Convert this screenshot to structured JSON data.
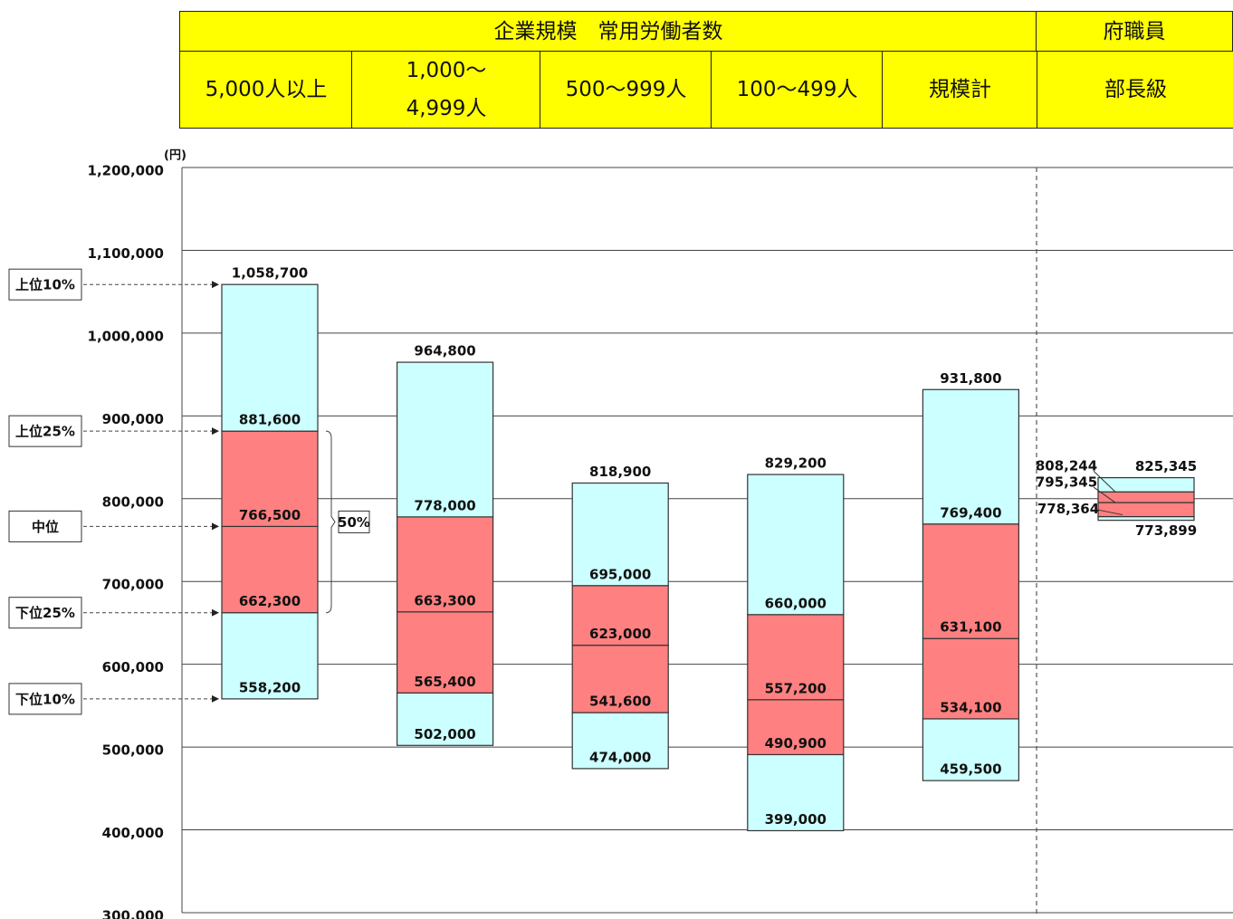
{
  "header": {
    "group_title": "企業規模　常用労働者数",
    "side_title": "府職員"
  },
  "chart_data": {
    "type": "percentile-box",
    "categories": [
      "5,000人以上",
      "1,000～\n4,999人",
      "500～999人",
      "100～499人",
      "規模計",
      "部長級"
    ],
    "y_unit": "(円)",
    "ylim": [
      300000,
      1200000
    ],
    "yticks": [
      {
        "value": 300000,
        "label": "300,000"
      },
      {
        "value": 400000,
        "label": "400,000"
      },
      {
        "value": 500000,
        "label": "500,000"
      },
      {
        "value": 600000,
        "label": "600,000"
      },
      {
        "value": 700000,
        "label": "700,000"
      },
      {
        "value": 800000,
        "label": "800,000"
      },
      {
        "value": 900000,
        "label": "900,000"
      },
      {
        "value": 1000000,
        "label": "1,000,000"
      },
      {
        "value": 1100000,
        "label": "1,100,000"
      },
      {
        "value": 1200000,
        "label": "1,200,000"
      }
    ],
    "grid": true,
    "outer_color": "#ccffff",
    "inner_color": "#ff8080",
    "bracket_label": "50%",
    "series": [
      {
        "name": "下位10%",
        "values": [
          558200,
          502000,
          474000,
          399000,
          459500,
          773899
        ],
        "value_labels": [
          "558,200",
          "502,000",
          "474,000",
          "399,000",
          "459,500",
          "773,899"
        ]
      },
      {
        "name": "下位25%",
        "values": [
          662300,
          565400,
          541600,
          490900,
          534100,
          778364
        ],
        "value_labels": [
          "662,300",
          "565,400",
          "541,600",
          "490,900",
          "534,100",
          "778,364"
        ]
      },
      {
        "name": "中位",
        "values": [
          766500,
          663300,
          623000,
          557200,
          631100,
          795345
        ],
        "value_labels": [
          "766,500",
          "663,300",
          "623,000",
          "557,200",
          "631,100",
          "795,345"
        ]
      },
      {
        "name": "上位25%",
        "values": [
          881600,
          778000,
          695000,
          660000,
          769400,
          808244
        ],
        "value_labels": [
          "881,600",
          "778,000",
          "695,000",
          "660,000",
          "769,400",
          "808,244"
        ]
      },
      {
        "name": "上位10%",
        "values": [
          1058700,
          964800,
          818900,
          829200,
          931800,
          825345
        ],
        "value_labels": [
          "1,058,700",
          "964,800",
          "818,900",
          "829,200",
          "931,800",
          "825,345"
        ]
      }
    ]
  }
}
